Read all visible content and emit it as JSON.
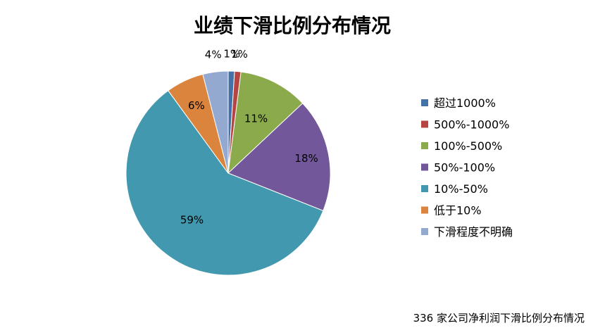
{
  "chart_data": {
    "type": "pie",
    "title": "业绩下滑比例分布情况",
    "caption": "336 家公司净利润下滑比例分布情况",
    "legend_position": "right",
    "categories": [
      "超过1000%",
      "500%-1000%",
      "100%-500%",
      "50%-100%",
      "10%-50%",
      "低于10%",
      "下滑程度不明确"
    ],
    "values": [
      1,
      1,
      11,
      18,
      59,
      6,
      4
    ],
    "labels": [
      "1%",
      "1%",
      "11%",
      "18%",
      "59%",
      "6%",
      "4%"
    ],
    "colors": [
      "#4472A8",
      "#B64442",
      "#8BAA4B",
      "#72589A",
      "#4298AE",
      "#DA843D",
      "#93A9CF"
    ]
  }
}
